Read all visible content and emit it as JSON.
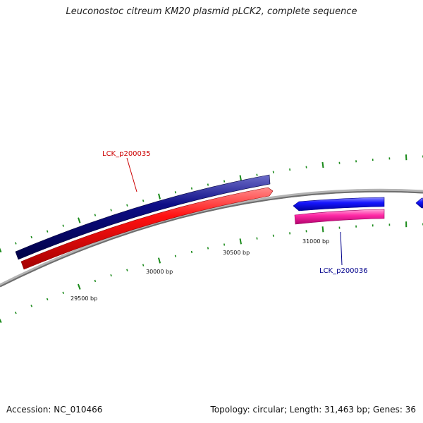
{
  "title": "Leuconostoc citreum KM20 plasmid pLCK2, complete sequence",
  "accession": "Accession: NC_010466",
  "summary": "Topology: circular; Length: 31,463 bp; Genes: 36",
  "ruler_labels": [
    "29500 bp",
    "30000 bp",
    "30500 bp",
    "31000 bp"
  ],
  "genes": [
    {
      "label": "LCK_p200035",
      "color": "#cc0000"
    },
    {
      "label": "LCK_p200036",
      "color": "#00008b"
    }
  ],
  "colors": {
    "backbone": "#8c8c8c",
    "ticks": "#1a8a1a",
    "cds_dark_blue": "#0b0b78",
    "red": "#ff1a1a",
    "blue": "#1a1aff",
    "magenta": "#ff2aa6"
  }
}
